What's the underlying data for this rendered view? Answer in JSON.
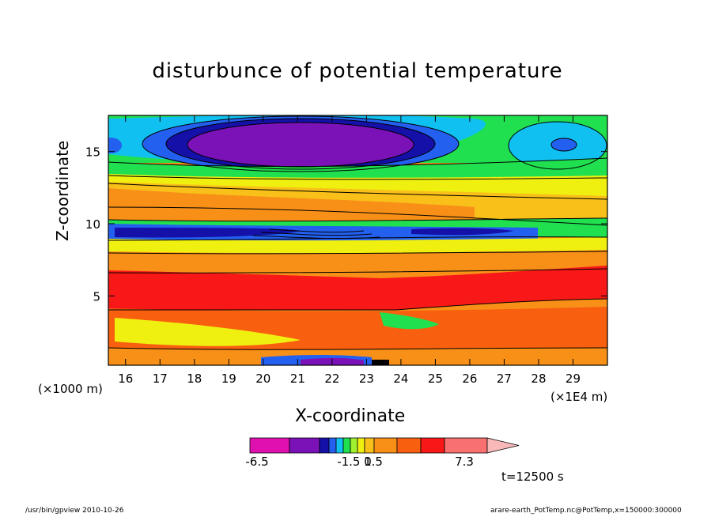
{
  "chart_data": {
    "type": "heatmap",
    "title": "disturbunce of potential temperature",
    "xlabel": "X-coordinate",
    "ylabel": "Z-coordinate",
    "x_unit_note": "(×1000 m)",
    "y_unit_note": "(×1E4 m)",
    "xlim": [
      15.5,
      30
    ],
    "ylim": [
      0.2,
      17.5
    ],
    "x_ticks": [
      16,
      17,
      18,
      19,
      20,
      21,
      22,
      23,
      24,
      25,
      26,
      27,
      28,
      29
    ],
    "y_ticks": [
      5,
      10,
      15
    ],
    "grid": false,
    "colorbar": {
      "labels": [
        "-6.5",
        "-1.5 0",
        "1.5",
        "7.3"
      ],
      "colors": [
        "#e010b0",
        "#7b12b8",
        "#1410a8",
        "#2460f0",
        "#10c0f0",
        "#20e050",
        "#a0f030",
        "#f0f010",
        "#f8c018",
        "#f89018",
        "#f86010",
        "#f81818",
        "#f87070",
        "#f8b8b8"
      ]
    },
    "time_label": "t=12500 s",
    "levels_colors": {
      "neg_max": "#7b12b8",
      "neg_strong": "#1410a8",
      "neg_mid": "#2460f0",
      "neg_weak": "#10c0f0",
      "near_zero": "#20e050",
      "pos_weak": "#f0f010",
      "pos_mid": "#f89018",
      "pos_high": "#f86010",
      "pos_max": "#f81818"
    }
  },
  "footer": {
    "left": "/usr/bin/gpview   2010-10-26",
    "right": "arare-earth_PotTemp.nc@PotTemp,x=150000:300000"
  }
}
